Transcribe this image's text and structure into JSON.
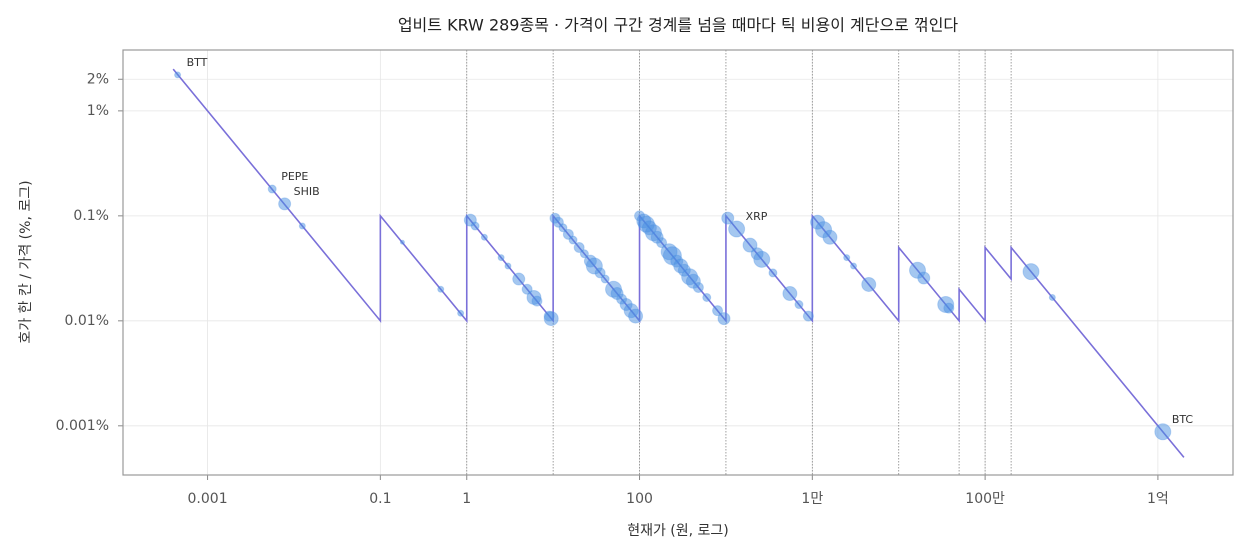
{
  "chart_data": {
    "type": "scatter",
    "title": "업비트 KRW 289종목 · 가격이 구간 경계를 넘을 때마다 틱 비용이 계단으로 꺾인다",
    "x_label": "현재가 (원, 로그)",
    "y_label": "호가 한 칸 / 가격 (%, 로그)",
    "xscale": "log",
    "yscale": "log",
    "grid": true,
    "xlim": [
      0.000105,
      740000000
    ],
    "ylim": [
      0.00034,
      3.8
    ],
    "xticks": [
      0.001,
      0.1,
      1,
      100,
      {
        "value": 10000,
        "label": "1만"
      },
      {
        "value": 1000000,
        "label": "100만"
      },
      {
        "value": 100000000,
        "label": "1억"
      }
    ],
    "yticks": [
      {
        "value": 0.001,
        "label": "0.001%"
      },
      {
        "value": 0.01,
        "label": "0.01%"
      },
      {
        "value": 0.1,
        "label": "0.1%"
      },
      {
        "value": 1,
        "label": "1%"
      },
      {
        "value": 2,
        "label": "2%"
      }
    ],
    "boundaries": [
      1,
      10,
      100,
      1000,
      10000,
      100000,
      500000,
      1000000,
      2000000
    ],
    "series": [
      {
        "type": "line",
        "color": "#7a70d9",
        "x": [
          0.0004,
          0.1,
          0.1,
          1,
          1,
          10,
          10,
          100,
          100,
          1000,
          1000,
          10000,
          10000,
          100000,
          100000,
          500000,
          500000,
          1000000,
          1000000,
          2000000,
          2000000,
          200000000
        ],
        "values": [
          2.5,
          0.01,
          0.1,
          0.01,
          0.1,
          0.01,
          0.1,
          0.01,
          0.1,
          0.01,
          0.1,
          0.01,
          0.1,
          0.01,
          0.05,
          0.01,
          0.02,
          0.01,
          0.05,
          0.025,
          0.05,
          0.0005
        ]
      },
      {
        "type": "scatter",
        "color": "#4a90e2",
        "x": [
          0.00045,
          0.0056,
          0.0078,
          0.0125,
          0.18,
          0.5,
          0.85,
          1.1,
          1.25,
          1.6,
          2.5,
          3.0,
          4.0,
          5.0,
          6.0,
          6.5,
          9.0,
          9.5,
          10.5,
          11.5,
          13,
          15,
          17,
          20,
          23,
          27,
          30,
          35,
          40,
          50,
          55,
          62,
          70,
          80,
          90,
          100,
          112,
          120,
          130,
          145,
          160,
          180,
          220,
          240,
          270,
          300,
          330,
          380,
          420,
          480,
          600,
          800,
          950,
          1050,
          1330,
          1900,
          2300,
          2600,
          3500,
          5500,
          7000,
          9000,
          11500,
          13500,
          16000,
          25000,
          30000,
          45000,
          165000,
          195000,
          350000,
          380000,
          3400000,
          6000000,
          114000000
        ],
        "values": [
          2.2,
          0.18,
          0.13,
          0.08,
          0.056,
          0.02,
          0.0118,
          0.091,
          0.08,
          0.0625,
          0.04,
          0.0333,
          0.025,
          0.02,
          0.0167,
          0.0154,
          0.0111,
          0.0105,
          0.095,
          0.087,
          0.077,
          0.0667,
          0.0588,
          0.05,
          0.0435,
          0.037,
          0.0333,
          0.0286,
          0.025,
          0.02,
          0.0182,
          0.0161,
          0.0143,
          0.0125,
          0.0111,
          0.1,
          0.0893,
          0.0833,
          0.0769,
          0.069,
          0.0625,
          0.0556,
          0.0455,
          0.0417,
          0.037,
          0.0333,
          0.0303,
          0.0263,
          0.0238,
          0.0208,
          0.0167,
          0.0125,
          0.0105,
          0.0952,
          0.075,
          0.0526,
          0.0435,
          0.0385,
          0.0286,
          0.0182,
          0.0143,
          0.0111,
          0.087,
          0.074,
          0.0625,
          0.04,
          0.0333,
          0.0222,
          0.0303,
          0.0256,
          0.0143,
          0.0132,
          0.0294,
          0.0167,
          0.000877
        ],
        "sizes": [
          3,
          4,
          6,
          3,
          2,
          3,
          3,
          6,
          4,
          3,
          3,
          3,
          6,
          5,
          7,
          5,
          5,
          7,
          5,
          5,
          4,
          5,
          4,
          5,
          4,
          6,
          8,
          5,
          4,
          8,
          6,
          5,
          6,
          7,
          7,
          5,
          7,
          8,
          7,
          8,
          6,
          5,
          8,
          9,
          6,
          7,
          6,
          8,
          7,
          5,
          4,
          5,
          6,
          6,
          8,
          7,
          6,
          8,
          4,
          7,
          4,
          5,
          7,
          8,
          7,
          3,
          3,
          7,
          8,
          6,
          8,
          5,
          8,
          3,
          8
        ],
        "labels": [
          "BTT",
          "PEPE",
          "SHIB",
          null,
          null,
          null,
          null,
          null,
          null,
          null,
          null,
          null,
          null,
          null,
          null,
          null,
          null,
          null,
          null,
          null,
          null,
          null,
          null,
          null,
          null,
          null,
          null,
          null,
          null,
          null,
          null,
          null,
          null,
          null,
          null,
          null,
          null,
          null,
          null,
          null,
          null,
          null,
          null,
          null,
          null,
          null,
          null,
          null,
          null,
          null,
          null,
          null,
          null,
          null,
          "XRP",
          null,
          null,
          null,
          null,
          null,
          null,
          null,
          null,
          null,
          null,
          null,
          null,
          null,
          null,
          null,
          null,
          null,
          null,
          null,
          "BTC"
        ]
      }
    ]
  }
}
